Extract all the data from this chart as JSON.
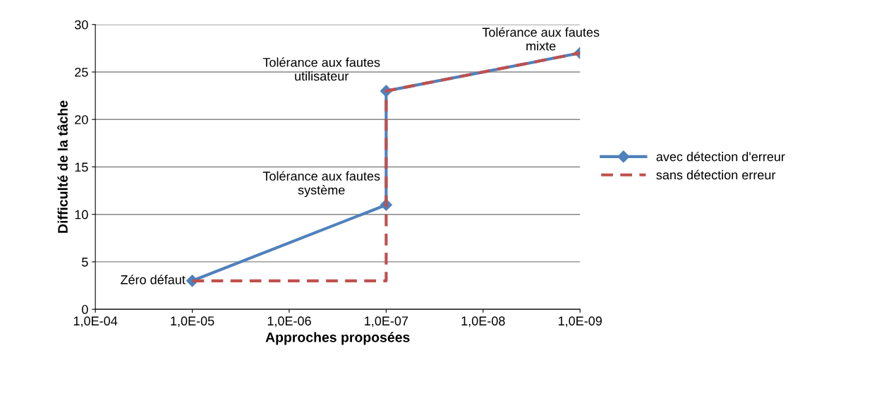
{
  "chart_data": {
    "type": "line",
    "xlabel": "Approches proposées",
    "ylabel": "Difficulté de la tâche",
    "categories": [
      "1,0E-04",
      "1,0E-05",
      "1,0E-06",
      "1,0E-07",
      "1,0E-08",
      "1,0E-09"
    ],
    "ylim": [
      0,
      30
    ],
    "yticks": [
      0,
      5,
      10,
      15,
      20,
      25,
      30
    ],
    "grid": "y",
    "legend": "right",
    "series": [
      {
        "name": "avec détection d'erreur",
        "color": "#4f81bd",
        "marker": "diamond",
        "line_style": "solid",
        "x": [
          "1,0E-05",
          "1,0E-07",
          "1,0E-07",
          "1,0E-09"
        ],
        "values": [
          3,
          11,
          23,
          27
        ]
      },
      {
        "name": "sans détection erreur",
        "color": "#c0504d",
        "marker": "none",
        "line_style": "dashed",
        "x": [
          "1,0E-05",
          "1,0E-07",
          "1,0E-07",
          "1,0E-09"
        ],
        "values": [
          3,
          3,
          23,
          27
        ]
      }
    ],
    "annotations": [
      {
        "text": "Zéro défaut",
        "x": "1,0E-05",
        "y": 3
      },
      {
        "text": "Tolérance aux fautes\nsystème",
        "x": "1,0E-07",
        "y": 11
      },
      {
        "text": "Tolérance aux fautes\nutilisateur",
        "x": "1,0E-07",
        "y": 23
      },
      {
        "text": "Tolérance aux fautes\nmixte",
        "x": "1,0E-09",
        "y": 27
      }
    ]
  }
}
